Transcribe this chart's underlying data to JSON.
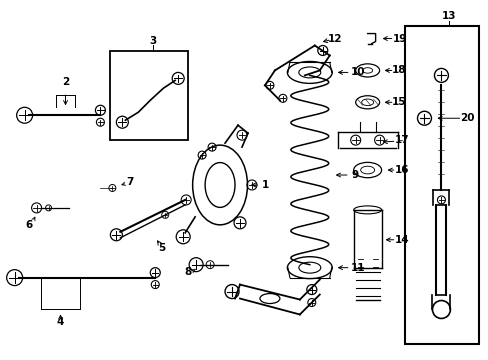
{
  "background": "#ffffff",
  "fig_width": 4.89,
  "fig_height": 3.6,
  "dpi": 100,
  "label_arrow_color": "#000000",
  "line_color": "#000000"
}
